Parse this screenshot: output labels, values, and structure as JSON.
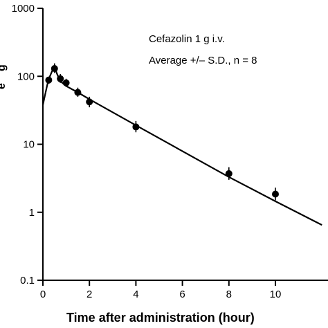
{
  "chart_data": {
    "type": "scatter",
    "title": "",
    "xlabel": "Time after administration (hour)",
    "ylabel": "",
    "ylabel_fragments": [
      "g",
      "e"
    ],
    "xlim": [
      0,
      12
    ],
    "ylim": [
      0.1,
      1000
    ],
    "yscale": "log",
    "grid": false,
    "x_ticks": [
      0,
      2,
      4,
      6,
      8,
      10
    ],
    "x_tick_labels": [
      "0",
      "2",
      "4",
      "6",
      "8",
      "10"
    ],
    "y_ticks": [
      0.1,
      1,
      10,
      100,
      1000
    ],
    "y_tick_labels": [
      "0.1",
      "1",
      "10",
      "100",
      "1000"
    ],
    "annotations": [
      "Cefazolin 1 g i.v.",
      "Average +/– S.D., n = 8"
    ],
    "series": [
      {
        "kind": "points",
        "x": [
          0.25,
          0.5,
          0.75,
          1.0,
          1.5,
          2.0,
          4.0,
          8.0,
          10.0
        ],
        "y": [
          88,
          130,
          92,
          80,
          58,
          42,
          18,
          3.7,
          1.85
        ],
        "err_low": [
          78,
          112,
          80,
          70,
          50,
          35,
          15,
          3.0,
          1.5
        ],
        "err_high": [
          99,
          155,
          108,
          92,
          68,
          50,
          22,
          4.6,
          2.3
        ]
      },
      {
        "kind": "fit-line",
        "x": [
          0,
          0.1,
          0.2,
          0.3,
          0.4,
          0.5,
          0.6,
          0.7,
          0.8,
          1.0,
          1.2,
          1.5,
          2.0,
          4.0,
          8.0,
          10.0,
          12.0
        ],
        "y": [
          38,
          55,
          78,
          100,
          120,
          137,
          110,
          92,
          82,
          72,
          66,
          58,
          46,
          19,
          3.3,
          1.45,
          0.65
        ]
      }
    ]
  }
}
